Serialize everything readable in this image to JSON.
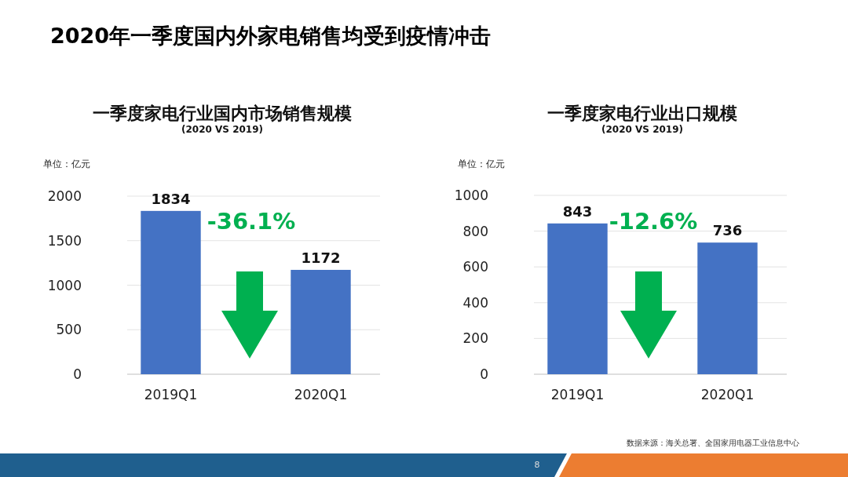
{
  "chart_data": [
    {
      "type": "bar",
      "title": "一季度家电行业国内市场销售规模",
      "subtitle": "(2020 VS 2019)",
      "ylabel": "单位：亿元",
      "categories": [
        "2019Q1",
        "2020Q1"
      ],
      "values": [
        1834,
        1172
      ],
      "color": "#4472c4",
      "ylim": [
        0,
        2000
      ],
      "yticks": [
        0,
        500,
        1000,
        1500,
        2000
      ],
      "grid": "y",
      "data_labels": true,
      "annotations": [
        "2020年一季度国内外家电销售均受到疫情冲击",
        "-36.1%"
      ]
    },
    {
      "type": "bar",
      "title": "一季度家电行业出口规模",
      "subtitle": "(2020 VS 2019)",
      "ylabel": "单位：亿元",
      "categories": [
        "2019Q1",
        "2020Q1"
      ],
      "values": [
        843,
        736
      ],
      "color": "#4472c4",
      "ylim": [
        0,
        1000
      ],
      "yticks": [
        0,
        200,
        400,
        600,
        800,
        1000
      ],
      "grid": "y",
      "data_labels": true,
      "annotations": [
        "-12.6%",
        "数据来源：海关总署、全国家用电器工业信息中心",
        "8"
      ]
    }
  ]
}
